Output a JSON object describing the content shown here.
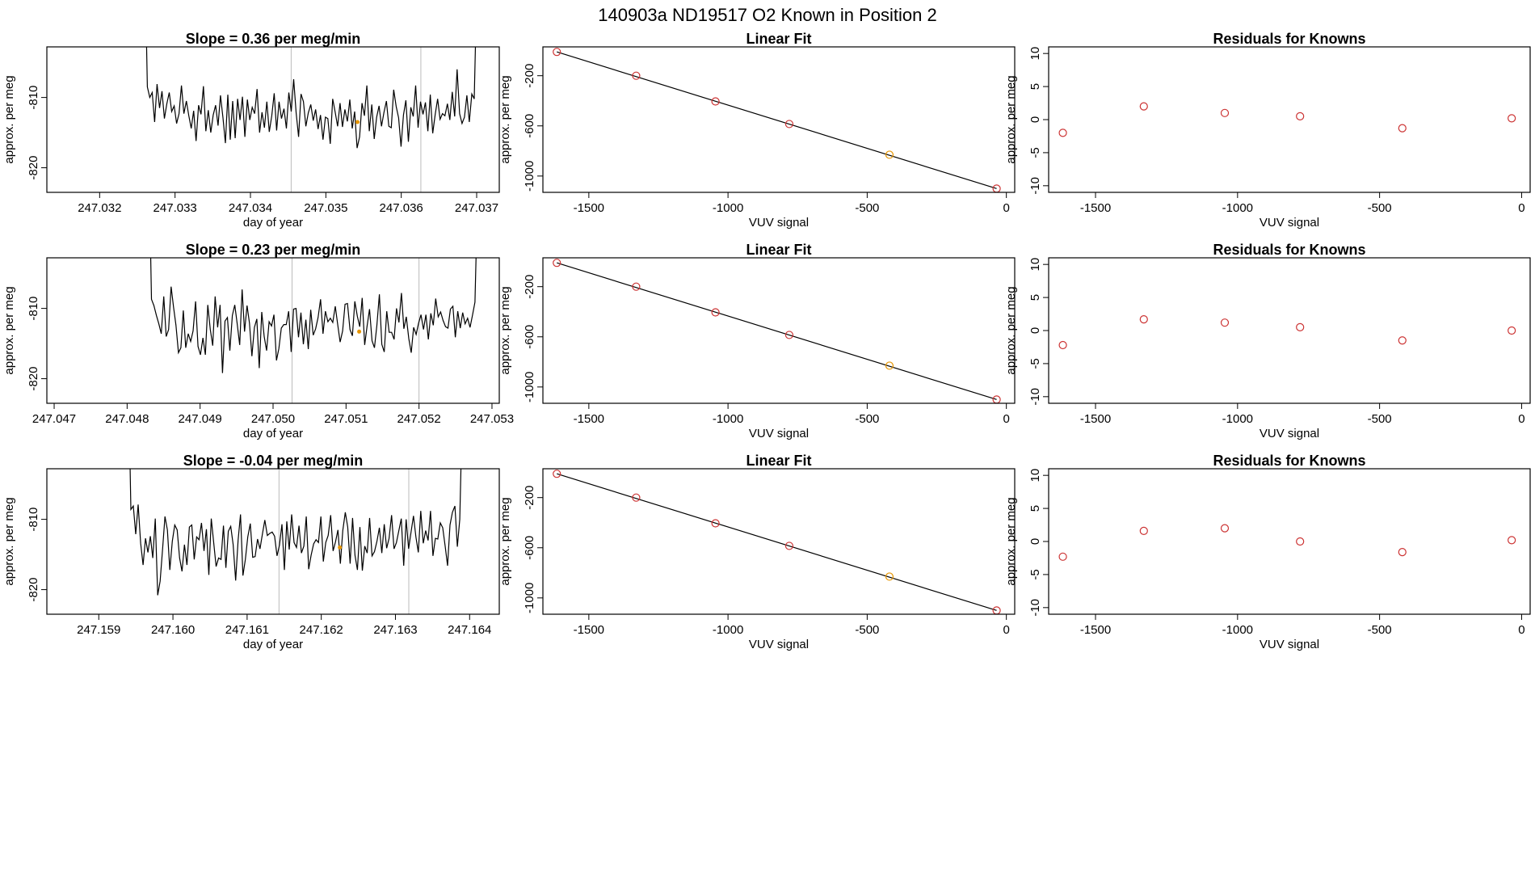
{
  "page_title": "140903a     ND19517   O2 Known in Position  2",
  "colors": {
    "line": "#000000",
    "point": "#cc3333",
    "highlight": "#e69500",
    "vline": "#bbbbbb"
  },
  "chart_data": [
    {
      "type": "line",
      "title": "Slope =  0.36  per meg/min",
      "xlabel": "day of year",
      "ylabel": "approx. per meg",
      "xlim": [
        247.0313,
        247.0373
      ],
      "ylim": [
        -823.5,
        -802.8
      ],
      "xticks": [
        "247.032",
        "247.033",
        "247.034",
        "247.035",
        "247.036",
        "247.037"
      ],
      "yticks": [
        "-820",
        "-810"
      ],
      "x_range": [
        247.0326,
        247.037
      ],
      "vlines": [
        247.03454,
        247.03626
      ],
      "highlight_point": {
        "x": 247.03542,
        "y": -813.5
      },
      "series": [
        {
          "values": [
            -790,
            -808.5,
            -810.0,
            -809.3,
            -813.5,
            -808.1,
            -811.5,
            -809.1,
            -813.0,
            -810.9,
            -809.3,
            -812.0,
            -811.2,
            -813.7,
            -812.3,
            -808.3,
            -812.3,
            -810.5,
            -812.6,
            -814.4,
            -811.9,
            -816.2,
            -811.1,
            -812.4,
            -808.4,
            -814.8,
            -811.8,
            -815.0,
            -812.5,
            -811.1,
            -814.0,
            -809.7,
            -812.9,
            -816.5,
            -809.6,
            -816.0,
            -810.5,
            -815.8,
            -810.2,
            -813.2,
            -809.9,
            -815.6,
            -810.3,
            -813.2,
            -811.4,
            -812.3,
            -808.8,
            -815.0,
            -812.1,
            -814.3,
            -810.6,
            -814.9,
            -812.6,
            -809.4,
            -814.7,
            -810.6,
            -813.0,
            -811.6,
            -814.4,
            -809.3,
            -812.0,
            -807.4,
            -812.1,
            -815.6,
            -809.5,
            -810.6,
            -814.1,
            -812.2,
            -811.0,
            -813.3,
            -811.7,
            -814.5,
            -812.5,
            -816.0,
            -812.8,
            -813.0,
            -816.6,
            -810.2,
            -812.1,
            -814.1,
            -810.8,
            -814.2,
            -811.7,
            -813.4,
            -810.3,
            -814.4,
            -812.0,
            -817.2,
            -815.6,
            -810.8,
            -812.6,
            -808.3,
            -814.8,
            -811.0,
            -815.9,
            -812.8,
            -811.2,
            -814.1,
            -812.1,
            -810.5,
            -814.1,
            -814.3,
            -808.9,
            -811.3,
            -812.9,
            -817.0,
            -812.5,
            -810.4,
            -816.3,
            -811.4,
            -812.7,
            -808.3,
            -814.3,
            -810.6,
            -812.4,
            -810.7,
            -814.8,
            -809.6,
            -815.1,
            -812.4,
            -810.2,
            -813.1,
            -812.3,
            -812.6,
            -810.9,
            -813.2,
            -809.2,
            -812.7,
            -806.0,
            -812.3,
            -813.7,
            -812.8,
            -809.7,
            -813.5,
            -809.5,
            -810.2,
            -795
          ]
        }
      ]
    },
    {
      "type": "scatter",
      "title": "Linear Fit",
      "xlabel": "VUV signal",
      "ylabel": "approx. per meg",
      "xlim": [
        -1665,
        30
      ],
      "ylim": [
        -1130,
        30
      ],
      "xticks": [
        "-1500",
        "-1000",
        "-500",
        "0"
      ],
      "yticks": [
        "-1000",
        "-600",
        "-200"
      ],
      "fit_line": [
        [
          -1615,
          -10
        ],
        [
          -35,
          -1100
        ]
      ],
      "points": [
        {
          "x": -1615,
          "y": -10,
          "color": "point"
        },
        {
          "x": -1330,
          "y": -200,
          "color": "point"
        },
        {
          "x": -1045,
          "y": -405,
          "color": "point"
        },
        {
          "x": -780,
          "y": -585,
          "color": "point"
        },
        {
          "x": -420,
          "y": -830,
          "color": "highlight"
        },
        {
          "x": -35,
          "y": -1100,
          "color": "point"
        }
      ]
    },
    {
      "type": "scatter",
      "title": "Residuals for Knowns",
      "xlabel": "VUV signal",
      "ylabel": "approx. per meg",
      "xlim": [
        -1665,
        30
      ],
      "ylim": [
        -11,
        11
      ],
      "xticks": [
        "-1500",
        "-1000",
        "-500",
        "0"
      ],
      "yticks": [
        "-10",
        "-5",
        "0",
        "5",
        "10"
      ],
      "points": [
        {
          "x": -1615,
          "y": -2.0
        },
        {
          "x": -1330,
          "y": 2.0
        },
        {
          "x": -1045,
          "y": 1.0
        },
        {
          "x": -780,
          "y": 0.5
        },
        {
          "x": -420,
          "y": -1.3
        },
        {
          "x": -35,
          "y": 0.2
        }
      ]
    },
    {
      "type": "line",
      "title": "Slope =  0.23  per meg/min",
      "xlabel": "day of year",
      "ylabel": "approx. per meg",
      "xlim": [
        247.0469,
        247.0531
      ],
      "ylim": [
        -823.5,
        -802.8
      ],
      "xticks": [
        "247.047",
        "247.048",
        "247.049",
        "247.050",
        "247.051",
        "247.052",
        "247.053"
      ],
      "yticks": [
        "-820",
        "-810"
      ],
      "x_range": [
        247.0483,
        247.0528
      ],
      "vlines": [
        247.05026,
        247.052
      ],
      "highlight_point": {
        "x": 247.05118,
        "y": -813.3
      },
      "series": [
        {
          "values": [
            -790,
            -808.7,
            -809.6,
            -811.0,
            -812.2,
            -813.6,
            -808.3,
            -814.0,
            -813.0,
            -806.9,
            -809.8,
            -812.4,
            -816.3,
            -815.6,
            -810.3,
            -815.6,
            -813.6,
            -814.7,
            -813.2,
            -809.0,
            -815.4,
            -816.6,
            -814.2,
            -816.6,
            -809.5,
            -813.0,
            -815.3,
            -808.3,
            -812.7,
            -809.5,
            -819.2,
            -811.8,
            -811.3,
            -816.0,
            -811.0,
            -809.5,
            -812.2,
            -815.2,
            -807.3,
            -813.3,
            -809.6,
            -812.1,
            -816.8,
            -812.7,
            -811.5,
            -818.5,
            -810.5,
            -814.0,
            -816.0,
            -811.9,
            -812.5,
            -810.9,
            -817.4,
            -815.7,
            -812.8,
            -812.3,
            -812.3,
            -810.4,
            -816.2,
            -810.1,
            -810.0,
            -814.1,
            -810.6,
            -815.1,
            -811.6,
            -815.8,
            -810.2,
            -813.8,
            -812.9,
            -811.3,
            -808.7,
            -813.6,
            -810.4,
            -811.9,
            -811.4,
            -812.0,
            -809.7,
            -812.3,
            -814.8,
            -813.2,
            -809.4,
            -809.3,
            -813.0,
            -813.9,
            -809.0,
            -811.1,
            -812.6,
            -808.5,
            -815.2,
            -812.5,
            -810.1,
            -814.6,
            -815.6,
            -812.4,
            -808.0,
            -815.1,
            -816.2,
            -810.4,
            -813.4,
            -813.4,
            -814.4,
            -810.0,
            -812.0,
            -807.8,
            -812.9,
            -811.2,
            -814.3,
            -816.3,
            -812.7,
            -813.7,
            -812.1,
            -810.9,
            -813.0,
            -810.9,
            -814.4,
            -810.7,
            -812.4,
            -808.6,
            -811.2,
            -810.5,
            -811.7,
            -812.6,
            -812.8,
            -810.1,
            -809.7,
            -814.1,
            -810.4,
            -812.8,
            -810.6,
            -812.2,
            -811.4,
            -812.7,
            -811.0,
            -809.1,
            -795
          ]
        }
      ]
    },
    {
      "type": "scatter",
      "title": "Linear Fit",
      "xlabel": "VUV signal",
      "ylabel": "approx. per meg",
      "xlim": [
        -1665,
        30
      ],
      "ylim": [
        -1130,
        30
      ],
      "xticks": [
        "-1500",
        "-1000",
        "-500",
        "0"
      ],
      "yticks": [
        "-1000",
        "-600",
        "-200"
      ],
      "fit_line": [
        [
          -1615,
          -10
        ],
        [
          -35,
          -1100
        ]
      ],
      "points": [
        {
          "x": -1615,
          "y": -10,
          "color": "point"
        },
        {
          "x": -1330,
          "y": -200,
          "color": "point"
        },
        {
          "x": -1045,
          "y": -405,
          "color": "point"
        },
        {
          "x": -780,
          "y": -585,
          "color": "point"
        },
        {
          "x": -420,
          "y": -830,
          "color": "highlight"
        },
        {
          "x": -35,
          "y": -1100,
          "color": "point"
        }
      ]
    },
    {
      "type": "scatter",
      "title": "Residuals for Knowns",
      "xlabel": "VUV signal",
      "ylabel": "approx. per meg",
      "xlim": [
        -1665,
        30
      ],
      "ylim": [
        -11,
        11
      ],
      "xticks": [
        "-1500",
        "-1000",
        "-500",
        "0"
      ],
      "yticks": [
        "-10",
        "-5",
        "0",
        "5",
        "10"
      ],
      "points": [
        {
          "x": -1615,
          "y": -2.2
        },
        {
          "x": -1330,
          "y": 1.7
        },
        {
          "x": -1045,
          "y": 1.2
        },
        {
          "x": -780,
          "y": 0.5
        },
        {
          "x": -420,
          "y": -1.5
        },
        {
          "x": -35,
          "y": 0.0
        }
      ]
    },
    {
      "type": "line",
      "title": "Slope =  -0.04  per meg/min",
      "xlabel": "day of year",
      "ylabel": "approx. per meg",
      "xlim": [
        247.1583,
        247.1644
      ],
      "ylim": [
        -823.5,
        -802.8
      ],
      "xticks": [
        "247.159",
        "247.160",
        "247.161",
        "247.162",
        "247.163",
        "247.164"
      ],
      "yticks": [
        "-820",
        "-810"
      ],
      "x_range": [
        247.1594,
        247.1639
      ],
      "vlines": [
        247.16143,
        247.16318
      ],
      "highlight_point": {
        "x": 247.16225,
        "y": -814.0
      },
      "series": [
        {
          "values": [
            -790,
            -808.6,
            -808.1,
            -812.1,
            -807.9,
            -813.4,
            -816.5,
            -812.7,
            -814.7,
            -812.4,
            -815.5,
            -809.9,
            -820.8,
            -818.8,
            -814.3,
            -809.6,
            -811.5,
            -817.2,
            -813.1,
            -810.8,
            -811.5,
            -815.5,
            -817.4,
            -813.6,
            -816.5,
            -811.1,
            -810.8,
            -815.7,
            -812.5,
            -812.9,
            -810.5,
            -814.5,
            -811.4,
            -817.9,
            -809.9,
            -813.3,
            -816.7,
            -815.5,
            -815.7,
            -810.9,
            -816.9,
            -811.7,
            -811.0,
            -813.6,
            -818.7,
            -813.0,
            -809.3,
            -818.0,
            -815.7,
            -812.5,
            -810.6,
            -815.4,
            -815.3,
            -812.8,
            -814.2,
            -812.1,
            -810.1,
            -812.3,
            -812.0,
            -811.8,
            -812.4,
            -815.2,
            -813.7,
            -810.7,
            -817.2,
            -810.3,
            -814.3,
            -809.3,
            -813.3,
            -814.0,
            -810.9,
            -814.8,
            -813.8,
            -809.6,
            -817.1,
            -815.1,
            -813.5,
            -812.9,
            -813.3,
            -809.6,
            -816.0,
            -813.3,
            -812.3,
            -809.4,
            -814.5,
            -813.2,
            -811.5,
            -816.3,
            -811.6,
            -809.0,
            -811.1,
            -816.3,
            -809.8,
            -815.1,
            -817.2,
            -811.1,
            -817.3,
            -813.8,
            -814.8,
            -809.8,
            -815.2,
            -814.6,
            -813.1,
            -811.2,
            -814.8,
            -810.7,
            -814.1,
            -812.7,
            -809.4,
            -814.2,
            -813.3,
            -811.6,
            -809.9,
            -816.6,
            -810.0,
            -814.2,
            -811.8,
            -809.5,
            -812.5,
            -814.7,
            -808.8,
            -813.4,
            -811.6,
            -813.0,
            -808.8,
            -815.2,
            -812.7,
            -812.8,
            -810.5,
            -811.2,
            -813.8,
            -816.6,
            -810.8,
            -809.0,
            -808.1,
            -813.9,
            -810.0,
            -795
          ]
        }
      ]
    },
    {
      "type": "scatter",
      "title": "Linear Fit",
      "xlabel": "VUV signal",
      "ylabel": "approx. per meg",
      "xlim": [
        -1665,
        30
      ],
      "ylim": [
        -1130,
        30
      ],
      "xticks": [
        "-1500",
        "-1000",
        "-500",
        "0"
      ],
      "yticks": [
        "-1000",
        "-600",
        "-200"
      ],
      "fit_line": [
        [
          -1615,
          -10
        ],
        [
          -35,
          -1100
        ]
      ],
      "points": [
        {
          "x": -1615,
          "y": -10,
          "color": "point"
        },
        {
          "x": -1330,
          "y": -200,
          "color": "point"
        },
        {
          "x": -1045,
          "y": -405,
          "color": "point"
        },
        {
          "x": -780,
          "y": -585,
          "color": "point"
        },
        {
          "x": -420,
          "y": -830,
          "color": "highlight"
        },
        {
          "x": -35,
          "y": -1100,
          "color": "point"
        }
      ]
    },
    {
      "type": "scatter",
      "title": "Residuals for Knowns",
      "xlabel": "VUV signal",
      "ylabel": "approx. per meg",
      "xlim": [
        -1665,
        30
      ],
      "ylim": [
        -11,
        11
      ],
      "xticks": [
        "-1500",
        "-1000",
        "-500",
        "0"
      ],
      "yticks": [
        "-10",
        "-5",
        "0",
        "5",
        "10"
      ],
      "points": [
        {
          "x": -1615,
          "y": -2.3
        },
        {
          "x": -1330,
          "y": 1.6
        },
        {
          "x": -1045,
          "y": 2.0
        },
        {
          "x": -780,
          "y": 0.0
        },
        {
          "x": -420,
          "y": -1.6
        },
        {
          "x": -35,
          "y": 0.2
        }
      ]
    }
  ]
}
